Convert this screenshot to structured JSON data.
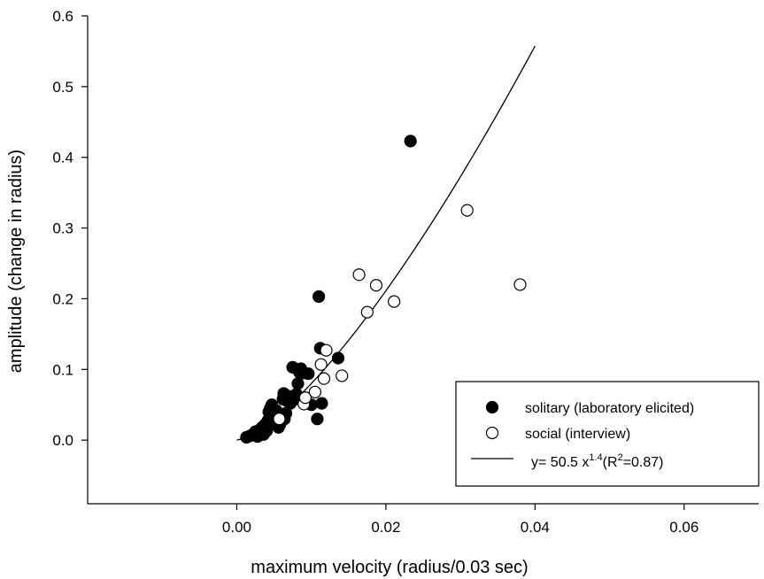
{
  "chart_data": {
    "type": "scatter",
    "xlabel": "maximum velocity (radius/0.03 sec)",
    "ylabel": "amplitude (change in radius)",
    "xlim": [
      -0.02,
      0.07
    ],
    "ylim": [
      -0.09,
      0.6
    ],
    "x_ticks": [
      "0.00",
      "0.02",
      "0.04",
      "0.06"
    ],
    "y_ticks": [
      "0.0",
      "0.1",
      "0.2",
      "0.3",
      "0.4",
      "0.5",
      "0.6"
    ],
    "grid": false,
    "legend_position": "bottom-right",
    "series": [
      {
        "name": "solitary (laboratory elicited)",
        "marker": "filled-circle",
        "color": "#000000",
        "points": [
          [
            0.0013,
            0.004
          ],
          [
            0.0018,
            0.006
          ],
          [
            0.0022,
            0.008
          ],
          [
            0.0025,
            0.012
          ],
          [
            0.0028,
            0.005
          ],
          [
            0.003,
            0.014
          ],
          [
            0.0032,
            0.01
          ],
          [
            0.0034,
            0.018
          ],
          [
            0.0036,
            0.008
          ],
          [
            0.0038,
            0.022
          ],
          [
            0.004,
            0.013
          ],
          [
            0.0042,
            0.028
          ],
          [
            0.0043,
            0.04
          ],
          [
            0.0045,
            0.045
          ],
          [
            0.0046,
            0.036
          ],
          [
            0.0047,
            0.05
          ],
          [
            0.0049,
            0.03
          ],
          [
            0.0051,
            0.025
          ],
          [
            0.0053,
            0.042
          ],
          [
            0.0056,
            0.018
          ],
          [
            0.0058,
            0.022
          ],
          [
            0.006,
            0.035
          ],
          [
            0.0062,
            0.058
          ],
          [
            0.0063,
            0.066
          ],
          [
            0.0064,
            0.03
          ],
          [
            0.0066,
            0.038
          ],
          [
            0.0068,
            0.055
          ],
          [
            0.007,
            0.062
          ],
          [
            0.0072,
            0.052
          ],
          [
            0.0075,
            0.103
          ],
          [
            0.0078,
            0.058
          ],
          [
            0.008,
            0.065
          ],
          [
            0.0082,
            0.08
          ],
          [
            0.0084,
            0.096
          ],
          [
            0.0086,
            0.101
          ],
          [
            0.009,
            0.095
          ],
          [
            0.0092,
            0.06
          ],
          [
            0.0094,
            0.052
          ],
          [
            0.0096,
            0.094
          ],
          [
            0.01,
            0.05
          ],
          [
            0.011,
            0.203
          ],
          [
            0.0108,
            0.03
          ],
          [
            0.0112,
            0.13
          ],
          [
            0.0114,
            0.052
          ],
          [
            0.0136,
            0.116
          ],
          [
            0.0233,
            0.423
          ]
        ]
      },
      {
        "name": "social (interview)",
        "marker": "open-circle",
        "color": "#000000",
        "points": [
          [
            0.0057,
            0.03
          ],
          [
            0.009,
            0.051
          ],
          [
            0.0092,
            0.06
          ],
          [
            0.0105,
            0.068
          ],
          [
            0.0113,
            0.107
          ],
          [
            0.0117,
            0.087
          ],
          [
            0.012,
            0.127
          ],
          [
            0.0141,
            0.091
          ],
          [
            0.0164,
            0.234
          ],
          [
            0.0175,
            0.181
          ],
          [
            0.0187,
            0.219
          ],
          [
            0.0211,
            0.196
          ],
          [
            0.0309,
            0.325
          ],
          [
            0.038,
            0.22
          ]
        ]
      },
      {
        "name": "y= 50.5 x^1.4 (R^2=0.87)",
        "type": "line",
        "color": "#000000",
        "equation": "y = 50.5 * x^1.4",
        "x_range": [
          0.0,
          0.04
        ]
      }
    ]
  },
  "legend": {
    "solitary": "solitary (laboratory elicited)",
    "social": "social (interview)",
    "fit_prefix": "y= 50.5 x",
    "fit_exp": "1.4",
    "fit_paren": "(R",
    "fit_r2exp": "2",
    "fit_suffix": "=0.87)"
  }
}
